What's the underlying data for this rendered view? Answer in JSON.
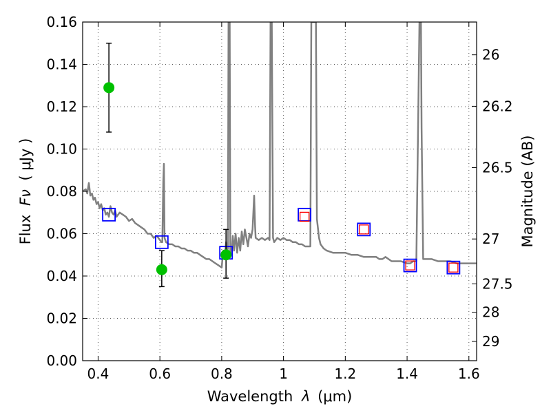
{
  "chart_data": {
    "type": "scatter",
    "xlabel_text": "Wavelength",
    "xlabel_symbol": "λ",
    "xlabel_unit": "(μm)",
    "ylabel_text": "Flux",
    "ylabel_symbol": "Fν",
    "ylabel_unit": "( μJy )",
    "y2label": "Magnitude (AB)",
    "xlim": [
      0.35,
      1.625
    ],
    "ylim": [
      0.0,
      0.16
    ],
    "grid": true,
    "x_ticks": [
      0.4,
      0.6,
      0.8,
      1.0,
      1.2,
      1.4,
      1.6
    ],
    "x_tick_labels": [
      "0.4",
      "0.6",
      "0.8",
      "1",
      "1.2",
      "1.4",
      "1.6"
    ],
    "y_ticks": [
      0.0,
      0.02,
      0.04,
      0.06,
      0.08,
      0.1,
      0.12,
      0.14,
      0.16
    ],
    "y_tick_labels": [
      "0.00",
      "0.02",
      "0.04",
      "0.06",
      "0.08",
      "0.10",
      "0.12",
      "0.14",
      "0.16"
    ],
    "mag_ticks": [
      {
        "label": "26",
        "flux": 0.1445
      },
      {
        "label": "26.2",
        "flux": 0.1202
      },
      {
        "label": "26.5",
        "flux": 0.0912
      },
      {
        "label": "27",
        "flux": 0.0575
      },
      {
        "label": "27.5",
        "flux": 0.0363
      },
      {
        "label": "28",
        "flux": 0.0229
      },
      {
        "label": "29",
        "flux": 0.0091
      }
    ],
    "series": [
      {
        "kind": "model_spectrum",
        "color": "#808080",
        "points": [
          [
            0.35,
            0.08
          ],
          [
            0.36,
            0.081
          ],
          [
            0.365,
            0.079
          ],
          [
            0.37,
            0.084
          ],
          [
            0.375,
            0.078
          ],
          [
            0.38,
            0.079
          ],
          [
            0.385,
            0.076
          ],
          [
            0.39,
            0.077
          ],
          [
            0.395,
            0.074
          ],
          [
            0.4,
            0.075
          ],
          [
            0.405,
            0.072
          ],
          [
            0.41,
            0.074
          ],
          [
            0.415,
            0.071
          ],
          [
            0.42,
            0.072
          ],
          [
            0.425,
            0.069
          ],
          [
            0.43,
            0.07
          ],
          [
            0.435,
            0.068
          ],
          [
            0.44,
            0.073
          ],
          [
            0.445,
            0.07
          ],
          [
            0.45,
            0.069
          ],
          [
            0.455,
            0.071
          ],
          [
            0.46,
            0.068
          ],
          [
            0.47,
            0.07
          ],
          [
            0.48,
            0.069
          ],
          [
            0.49,
            0.068
          ],
          [
            0.5,
            0.066
          ],
          [
            0.51,
            0.067
          ],
          [
            0.52,
            0.065
          ],
          [
            0.53,
            0.064
          ],
          [
            0.54,
            0.063
          ],
          [
            0.55,
            0.062
          ],
          [
            0.56,
            0.06
          ],
          [
            0.57,
            0.06
          ],
          [
            0.58,
            0.058
          ],
          [
            0.59,
            0.059
          ],
          [
            0.6,
            0.057
          ],
          [
            0.605,
            0.056
          ],
          [
            0.608,
            0.056
          ],
          [
            0.611,
            0.085
          ],
          [
            0.613,
            0.093
          ],
          [
            0.615,
            0.058
          ],
          [
            0.62,
            0.056
          ],
          [
            0.63,
            0.055
          ],
          [
            0.64,
            0.055
          ],
          [
            0.65,
            0.054
          ],
          [
            0.66,
            0.054
          ],
          [
            0.67,
            0.053
          ],
          [
            0.68,
            0.053
          ],
          [
            0.69,
            0.052
          ],
          [
            0.7,
            0.052
          ],
          [
            0.71,
            0.051
          ],
          [
            0.72,
            0.051
          ],
          [
            0.73,
            0.05
          ],
          [
            0.74,
            0.049
          ],
          [
            0.75,
            0.048
          ],
          [
            0.76,
            0.048
          ],
          [
            0.77,
            0.047
          ],
          [
            0.78,
            0.046
          ],
          [
            0.79,
            0.045
          ],
          [
            0.8,
            0.044
          ],
          [
            0.803,
            0.049
          ],
          [
            0.806,
            0.052
          ],
          [
            0.81,
            0.049
          ],
          [
            0.814,
            0.056
          ],
          [
            0.818,
            0.052
          ],
          [
            0.82,
            0.053
          ],
          [
            0.822,
            0.16
          ],
          [
            0.826,
            0.16
          ],
          [
            0.828,
            0.05
          ],
          [
            0.832,
            0.05
          ],
          [
            0.836,
            0.059
          ],
          [
            0.84,
            0.052
          ],
          [
            0.845,
            0.06
          ],
          [
            0.85,
            0.051
          ],
          [
            0.855,
            0.058
          ],
          [
            0.86,
            0.052
          ],
          [
            0.865,
            0.061
          ],
          [
            0.87,
            0.055
          ],
          [
            0.875,
            0.062
          ],
          [
            0.88,
            0.058
          ],
          [
            0.885,
            0.054
          ],
          [
            0.89,
            0.06
          ],
          [
            0.895,
            0.058
          ],
          [
            0.9,
            0.062
          ],
          [
            0.905,
            0.078
          ],
          [
            0.908,
            0.064
          ],
          [
            0.91,
            0.058
          ],
          [
            0.92,
            0.057
          ],
          [
            0.93,
            0.058
          ],
          [
            0.94,
            0.057
          ],
          [
            0.95,
            0.058
          ],
          [
            0.955,
            0.057
          ],
          [
            0.958,
            0.16
          ],
          [
            0.962,
            0.16
          ],
          [
            0.966,
            0.058
          ],
          [
            0.97,
            0.056
          ],
          [
            0.98,
            0.058
          ],
          [
            0.99,
            0.057
          ],
          [
            1.0,
            0.058
          ],
          [
            1.01,
            0.057
          ],
          [
            1.02,
            0.057
          ],
          [
            1.03,
            0.056
          ],
          [
            1.04,
            0.056
          ],
          [
            1.05,
            0.055
          ],
          [
            1.06,
            0.055
          ],
          [
            1.07,
            0.054
          ],
          [
            1.08,
            0.054
          ],
          [
            1.087,
            0.054
          ],
          [
            1.09,
            0.16
          ],
          [
            1.105,
            0.16
          ],
          [
            1.108,
            0.067
          ],
          [
            1.115,
            0.058
          ],
          [
            1.12,
            0.055
          ],
          [
            1.13,
            0.053
          ],
          [
            1.14,
            0.052
          ],
          [
            1.16,
            0.051
          ],
          [
            1.18,
            0.051
          ],
          [
            1.2,
            0.051
          ],
          [
            1.22,
            0.05
          ],
          [
            1.24,
            0.05
          ],
          [
            1.26,
            0.049
          ],
          [
            1.28,
            0.049
          ],
          [
            1.3,
            0.049
          ],
          [
            1.31,
            0.048
          ],
          [
            1.32,
            0.048
          ],
          [
            1.33,
            0.049
          ],
          [
            1.34,
            0.048
          ],
          [
            1.35,
            0.047
          ],
          [
            1.36,
            0.047
          ],
          [
            1.38,
            0.047
          ],
          [
            1.4,
            0.046
          ],
          [
            1.41,
            0.046
          ],
          [
            1.42,
            0.047
          ],
          [
            1.43,
            0.047
          ],
          [
            1.44,
            0.16
          ],
          [
            1.445,
            0.16
          ],
          [
            1.447,
            0.11
          ],
          [
            1.452,
            0.048
          ],
          [
            1.46,
            0.048
          ],
          [
            1.48,
            0.048
          ],
          [
            1.5,
            0.047
          ],
          [
            1.52,
            0.047
          ],
          [
            1.54,
            0.047
          ],
          [
            1.56,
            0.046
          ],
          [
            1.58,
            0.046
          ],
          [
            1.6,
            0.046
          ],
          [
            1.625,
            0.046
          ]
        ]
      },
      {
        "kind": "model_photometry",
        "color": "#0000ff",
        "marker": "square",
        "x": [
          0.435,
          0.606,
          0.814,
          1.068,
          1.26,
          1.41,
          1.55
        ],
        "y": [
          0.069,
          0.056,
          0.051,
          0.069,
          0.062,
          0.045,
          0.044
        ]
      },
      {
        "kind": "observed_photometry",
        "color": "#ff0000",
        "marker": "square",
        "x": [
          1.068,
          1.26,
          1.41,
          1.55
        ],
        "y": [
          0.068,
          0.062,
          0.045,
          0.044
        ]
      },
      {
        "kind": "observed_detections",
        "color": "#00c000",
        "marker": "circle",
        "x": [
          0.435,
          0.606,
          0.814
        ],
        "y": [
          0.129,
          0.043,
          0.05
        ],
        "yerr_low": [
          0.108,
          0.035,
          0.039
        ],
        "yerr_high": [
          0.15,
          0.052,
          0.062
        ]
      }
    ]
  }
}
